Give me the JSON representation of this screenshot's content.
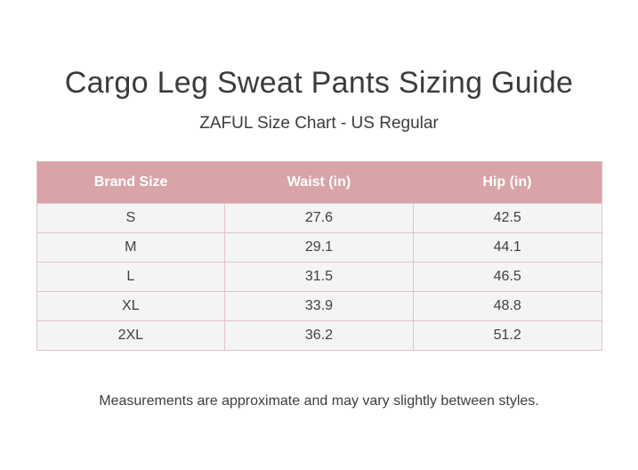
{
  "page": {
    "title": "Cargo Leg Sweat Pants Sizing Guide",
    "subtitle": "ZAFUL Size Chart - US Regular",
    "footnote": "Measurements are approximate and may vary slightly between styles."
  },
  "colors": {
    "header_bg": "#d9a4a8",
    "header_text": "#ffffff",
    "row_bg": "#f5f4f5",
    "table_border": "#e0c4c5",
    "text": "#3b3b3b",
    "page_bg": "#ffffff"
  },
  "chart_data": {
    "type": "table",
    "title": "Cargo Leg Sweat Pants Sizing Guide",
    "subtitle": "ZAFUL Size Chart - US Regular",
    "columns": [
      "Brand Size",
      "Waist (in)",
      "Hip (in)"
    ],
    "rows": [
      [
        "S",
        "27.6",
        "42.5"
      ],
      [
        "M",
        "29.1",
        "44.1"
      ],
      [
        "L",
        "31.5",
        "46.5"
      ],
      [
        "XL",
        "33.9",
        "48.8"
      ],
      [
        "2XL",
        "36.2",
        "51.2"
      ]
    ]
  }
}
